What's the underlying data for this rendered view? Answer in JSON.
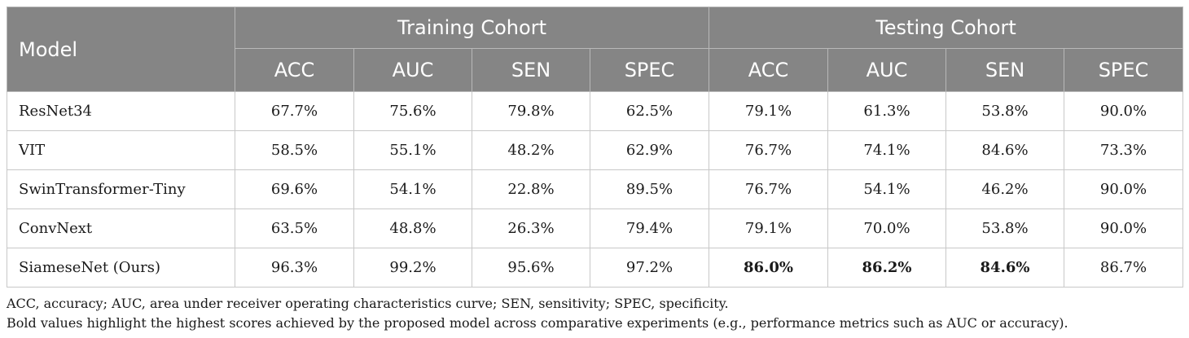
{
  "table": {
    "model_header": "Model",
    "groups": [
      "Training Cohort",
      "Testing Cohort"
    ],
    "metrics": [
      "ACC",
      "AUC",
      "SEN",
      "SPEC",
      "ACC",
      "AUC",
      "SEN",
      "SPEC"
    ],
    "rows": [
      {
        "model": "ResNet34",
        "values": [
          "67.7%",
          "75.6%",
          "79.8%",
          "62.5%",
          "79.1%",
          "61.3%",
          "53.8%",
          "90.0%"
        ],
        "bold": [
          false,
          false,
          false,
          false,
          false,
          false,
          false,
          false
        ]
      },
      {
        "model": "VIT",
        "values": [
          "58.5%",
          "55.1%",
          "48.2%",
          "62.9%",
          "76.7%",
          "74.1%",
          "84.6%",
          "73.3%"
        ],
        "bold": [
          false,
          false,
          false,
          false,
          false,
          false,
          false,
          false
        ]
      },
      {
        "model": "SwinTransformer-Tiny",
        "values": [
          "69.6%",
          "54.1%",
          "22.8%",
          "89.5%",
          "76.7%",
          "54.1%",
          "46.2%",
          "90.0%"
        ],
        "bold": [
          false,
          false,
          false,
          false,
          false,
          false,
          false,
          false
        ]
      },
      {
        "model": "ConvNext",
        "values": [
          "63.5%",
          "48.8%",
          "26.3%",
          "79.4%",
          "79.1%",
          "70.0%",
          "53.8%",
          "90.0%"
        ],
        "bold": [
          false,
          false,
          false,
          false,
          false,
          false,
          false,
          false
        ]
      },
      {
        "model": "SiameseNet (Ours)",
        "values": [
          "96.3%",
          "99.2%",
          "95.6%",
          "97.2%",
          "86.0%",
          "86.2%",
          "84.6%",
          "86.7%"
        ],
        "bold": [
          false,
          false,
          false,
          false,
          true,
          true,
          true,
          false
        ]
      }
    ]
  },
  "notes": {
    "abbreviations": "ACC, accuracy; AUC, area under receiver operating characteristics curve; SEN, sensitivity; SPEC, specificity.",
    "bold_note": "Bold values highlight the highest scores achieved by the proposed model across comparative experiments (e.g., performance metrics such as AUC or accuracy)."
  },
  "colors": {
    "header_bg": "#858585",
    "header_text": "#ffffff",
    "border": "#c8c8c8"
  }
}
